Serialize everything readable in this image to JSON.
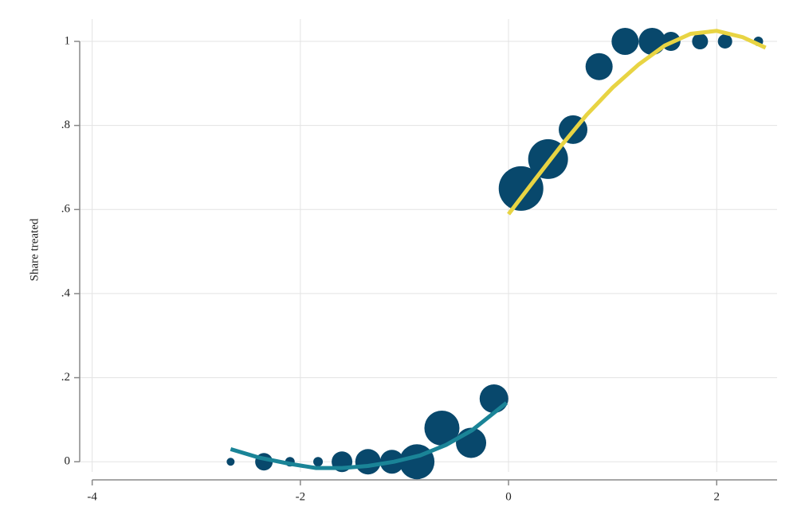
{
  "chart_data": {
    "type": "scatter",
    "y_label": "Share treated",
    "xlim": [
      -4.12,
      2.58
    ],
    "ylim": [
      -0.045,
      1.053
    ],
    "xticks": [
      -4,
      -2,
      0,
      2
    ],
    "yticks": [
      0,
      {
        "value": 0.2,
        "label": ".2"
      },
      {
        "value": 0.4,
        "label": ".4"
      },
      {
        "value": 0.6,
        "label": ".6"
      },
      {
        "value": 0.8,
        "label": ".8"
      },
      1
    ],
    "grid": true,
    "points": {
      "color": "#08486c",
      "x": [
        -2.67,
        -2.35,
        -2.1,
        -1.83,
        -1.6,
        -1.35,
        -1.12,
        -0.88,
        -0.64,
        -0.36,
        -0.14,
        0.12,
        0.38,
        0.62,
        0.87,
        1.12,
        1.38,
        1.56,
        1.84,
        2.08,
        2.4
      ],
      "values": [
        0,
        0,
        0,
        0,
        0,
        0,
        0,
        0,
        0.08,
        0.045,
        0.15,
        0.65,
        0.72,
        0.79,
        0.94,
        1,
        1,
        1,
        1,
        1,
        1
      ],
      "sizes": [
        25,
        121,
        36,
        36,
        169,
        256,
        225,
        484,
        484,
        361,
        324,
        784,
        625,
        324,
        289,
        289,
        289,
        144,
        100,
        81,
        36
      ]
    },
    "fit_lines": [
      {
        "color": "#1a8497",
        "x": [
          -2.67,
          -2.4,
          -2.1,
          -1.85,
          -1.6,
          -1.35,
          -1.1,
          -0.85,
          -0.6,
          -0.35,
          -0.02
        ],
        "values": [
          0.03,
          0.01,
          -0.005,
          -0.015,
          -0.015,
          -0.01,
          0,
          0.015,
          0.04,
          0.075,
          0.14
        ]
      },
      {
        "color": "#e8d443",
        "x": [
          0,
          0.25,
          0.5,
          0.75,
          1.0,
          1.25,
          1.5,
          1.75,
          2.0,
          2.25,
          2.47
        ],
        "values": [
          0.589,
          0.67,
          0.75,
          0.825,
          0.89,
          0.945,
          0.99,
          1.018,
          1.025,
          1.01,
          0.985
        ]
      }
    ]
  }
}
